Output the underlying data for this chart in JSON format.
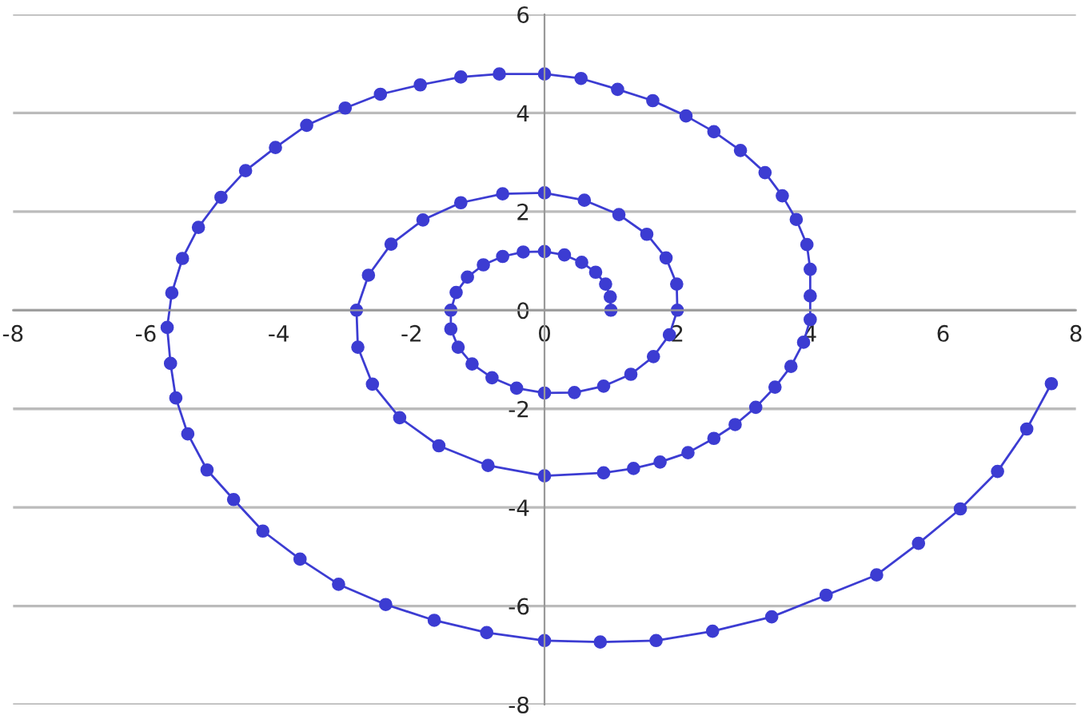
{
  "chart_data": {
    "type": "line",
    "xlim": [
      -8,
      8
    ],
    "ylim": [
      -8,
      6
    ],
    "xticks": [
      -8,
      -6,
      -4,
      -2,
      0,
      2,
      4,
      6,
      8
    ],
    "yticks": [
      -8,
      -6,
      -4,
      -2,
      0,
      2,
      4,
      6
    ],
    "grid": "y",
    "marker": "circle",
    "line_style": "solid",
    "series": [
      {
        "color": "#3c3cd2",
        "x": [
          1.0,
          0.99,
          0.92,
          0.77,
          0.56,
          0.3,
          0,
          -0.32,
          -0.63,
          -0.92,
          -1.16,
          -1.33,
          -1.41,
          -1.41,
          -1.3,
          -1.09,
          -0.79,
          -0.42,
          0,
          0.45,
          0.89,
          1.3,
          1.64,
          1.88,
          2.0,
          1.99,
          1.83,
          1.54,
          1.12,
          0.6,
          0,
          -0.63,
          -1.26,
          -1.83,
          -2.31,
          -2.65,
          -2.83,
          -2.81,
          -2.59,
          -2.18,
          -1.59,
          -0.85,
          0,
          0.89,
          1.34,
          1.74,
          2.16,
          2.55,
          2.87,
          3.18,
          3.47,
          3.71,
          3.9,
          4.0,
          4.0,
          4.0,
          3.95,
          3.79,
          3.58,
          3.32,
          2.95,
          2.55,
          2.13,
          1.63,
          1.1,
          0.55,
          0,
          -0.68,
          -1.26,
          -1.87,
          -2.47,
          -3.0,
          -3.58,
          -4.05,
          -4.5,
          -4.87,
          -5.21,
          -5.45,
          -5.61,
          -5.68,
          -5.63,
          -5.55,
          -5.37,
          -5.08,
          -4.68,
          -4.24,
          -3.68,
          -3.1,
          -2.39,
          -1.66,
          -0.87,
          0,
          0.84,
          1.68,
          2.53,
          3.42,
          4.24,
          5.0,
          5.63,
          6.26,
          6.82,
          7.26,
          7.63
        ],
        "values": [
          0,
          0.27,
          0.53,
          0.77,
          0.97,
          1.12,
          1.19,
          1.18,
          1.09,
          0.92,
          0.67,
          0.36,
          0,
          -0.38,
          -0.75,
          -1.09,
          -1.37,
          -1.58,
          -1.68,
          -1.67,
          -1.54,
          -1.3,
          -0.94,
          -0.5,
          0,
          0.53,
          1.06,
          1.54,
          1.94,
          2.23,
          2.38,
          2.36,
          2.18,
          1.83,
          1.34,
          0.71,
          0,
          -0.75,
          -1.5,
          -2.18,
          -2.75,
          -3.15,
          -3.36,
          -3.3,
          -3.21,
          -3.08,
          -2.89,
          -2.6,
          -2.32,
          -1.97,
          -1.56,
          -1.14,
          -0.65,
          -0.19,
          0.29,
          0.83,
          1.33,
          1.84,
          2.32,
          2.79,
          3.24,
          3.62,
          3.94,
          4.25,
          4.48,
          4.7,
          4.79,
          4.79,
          4.73,
          4.57,
          4.38,
          4.1,
          3.75,
          3.3,
          2.83,
          2.29,
          1.68,
          1.05,
          0.35,
          -0.35,
          -1.08,
          -1.78,
          -2.51,
          -3.24,
          -3.84,
          -4.48,
          -5.05,
          -5.56,
          -5.97,
          -6.29,
          -6.54,
          -6.7,
          -6.73,
          -6.7,
          -6.51,
          -6.22,
          -5.78,
          -5.37,
          -4.73,
          -4.03,
          -3.27,
          -2.41,
          -1.49
        ]
      }
    ]
  }
}
